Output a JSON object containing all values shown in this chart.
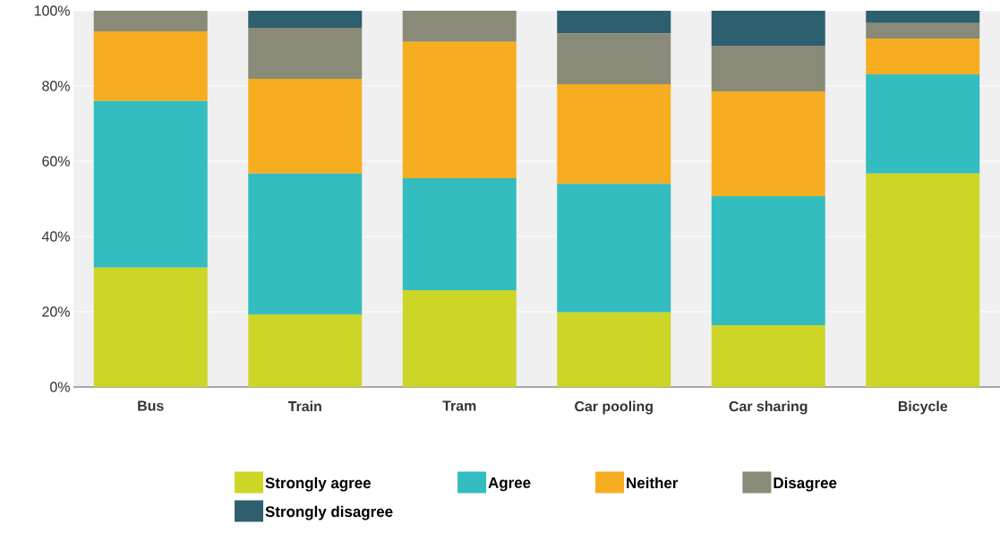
{
  "chart_data": {
    "type": "bar",
    "stacked": true,
    "categories": [
      "Bus",
      "Train",
      "Tram",
      "Car pooling",
      "Car sharing",
      "Bicycle"
    ],
    "series": [
      {
        "name": "Strongly agree",
        "color": "#cdd627",
        "values": [
          31.7,
          19.3,
          25.7,
          19.8,
          16.4,
          56.7
        ]
      },
      {
        "name": "Agree",
        "color": "#33bdc0",
        "values": [
          44.3,
          37.4,
          29.8,
          34.2,
          34.3,
          26.4
        ]
      },
      {
        "name": "Neither",
        "color": "#f6ae20",
        "values": [
          18.5,
          25.2,
          36.2,
          26.5,
          27.9,
          9.5
        ]
      },
      {
        "name": "Disagree",
        "color": "#8a8a78",
        "values": [
          5.5,
          13.6,
          8.3,
          13.5,
          12.1,
          4.1
        ]
      },
      {
        "name": "Strongly disagree",
        "color": "#2e5f6e",
        "values": [
          0,
          4.5,
          0,
          6,
          9.3,
          3.3
        ]
      }
    ],
    "ylim": [
      0,
      100
    ],
    "yticks": [
      {
        "value": 0,
        "label": "0%"
      },
      {
        "value": 20,
        "label": "20%"
      },
      {
        "value": 40,
        "label": "40%"
      },
      {
        "value": 60,
        "label": "60%"
      },
      {
        "value": 80,
        "label": "80%"
      },
      {
        "value": 100,
        "label": "100%"
      }
    ],
    "grid": "y",
    "legend": "bottom"
  }
}
